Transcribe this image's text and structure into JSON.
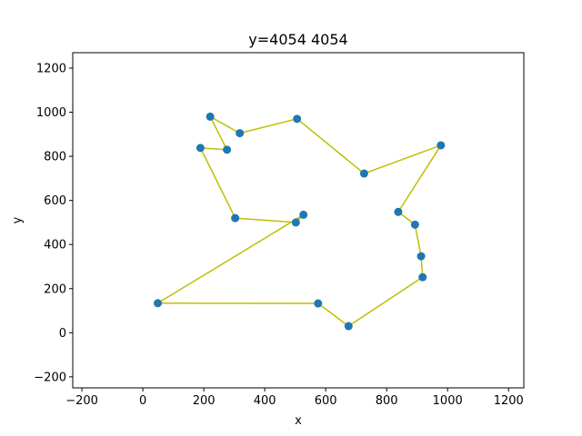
{
  "chart_data": {
    "type": "scatter",
    "title": "y=4054 4054",
    "xlabel": "x",
    "ylabel": "y",
    "xlim": [
      -230,
      1250
    ],
    "ylim": [
      -250,
      1270
    ],
    "xticks": [
      -200,
      0,
      200,
      400,
      600,
      800,
      1000,
      1200
    ],
    "yticks": [
      -200,
      0,
      200,
      400,
      600,
      800,
      1000,
      1200
    ],
    "grid": false,
    "colors": {
      "points": "#1f77b4",
      "path": "#bfbf00",
      "axes": "#000000"
    },
    "points": [
      {
        "x": 49,
        "y": 134
      },
      {
        "x": 575,
        "y": 133
      },
      {
        "x": 675,
        "y": 30
      },
      {
        "x": 918,
        "y": 252
      },
      {
        "x": 913,
        "y": 347
      },
      {
        "x": 893,
        "y": 490
      },
      {
        "x": 838,
        "y": 548
      },
      {
        "x": 978,
        "y": 850
      },
      {
        "x": 726,
        "y": 722
      },
      {
        "x": 506,
        "y": 970
      },
      {
        "x": 318,
        "y": 905
      },
      {
        "x": 221,
        "y": 980
      },
      {
        "x": 276,
        "y": 830
      },
      {
        "x": 189,
        "y": 838
      },
      {
        "x": 303,
        "y": 520
      },
      {
        "x": 502,
        "y": 500
      },
      {
        "x": 527,
        "y": 535
      }
    ],
    "path_order": [
      0,
      1,
      2,
      3,
      4,
      5,
      6,
      7,
      8,
      9,
      10,
      11,
      12,
      13,
      14,
      15,
      16,
      0
    ]
  }
}
